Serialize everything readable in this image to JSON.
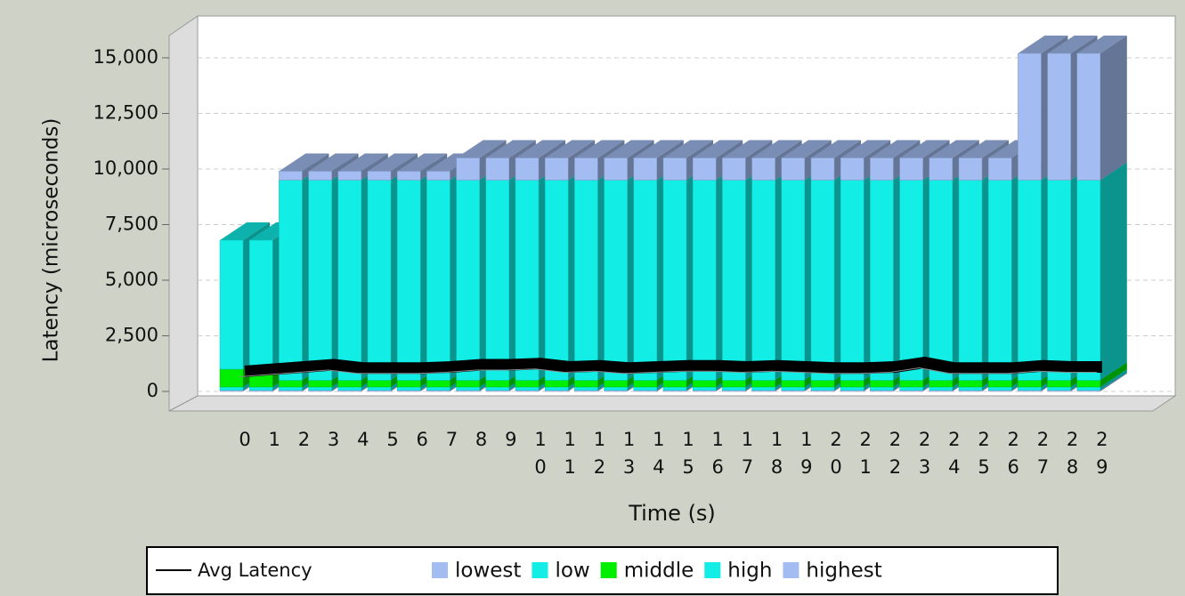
{
  "chart_data": {
    "type": "stacked-bar-line",
    "y_axis_label": "Latency (microseconds)",
    "x_axis_label": "Time (s)",
    "categories": [
      "0",
      "1",
      "2",
      "3",
      "4",
      "5",
      "6",
      "7",
      "8",
      "9",
      "10",
      "11",
      "12",
      "13",
      "14",
      "15",
      "16",
      "17",
      "18",
      "19",
      "20",
      "21",
      "22",
      "23",
      "24",
      "25",
      "26",
      "27",
      "28",
      "29"
    ],
    "ylim": [
      0,
      16000
    ],
    "yticks": [
      0,
      {
        "value": 2500,
        "label": "2,500"
      },
      {
        "value": 5000,
        "label": "5,000"
      },
      {
        "value": 7500,
        "label": "7,500"
      },
      {
        "value": 10000,
        "label": "10,000"
      },
      {
        "value": 12500,
        "label": "12,500"
      },
      {
        "value": 15000,
        "label": "15,000"
      }
    ],
    "grid": true,
    "series": [
      {
        "name": "lowest",
        "color": "#a3bdf2",
        "values": [
          50,
          50,
          50,
          50,
          50,
          50,
          50,
          50,
          50,
          50,
          50,
          50,
          50,
          50,
          50,
          50,
          50,
          50,
          50,
          50,
          50,
          50,
          50,
          50,
          50,
          50,
          50,
          50,
          50,
          50
        ]
      },
      {
        "name": "low",
        "color": "#12eee6",
        "values": [
          150,
          150,
          150,
          150,
          150,
          150,
          150,
          150,
          150,
          150,
          150,
          150,
          150,
          150,
          150,
          150,
          150,
          150,
          150,
          150,
          150,
          150,
          150,
          150,
          150,
          150,
          150,
          150,
          150,
          150
        ]
      },
      {
        "name": "middle",
        "color": "#00ee00",
        "values": [
          800,
          800,
          300,
          300,
          300,
          300,
          300,
          300,
          300,
          300,
          300,
          300,
          300,
          300,
          300,
          300,
          300,
          300,
          300,
          300,
          300,
          300,
          300,
          300,
          300,
          300,
          300,
          300,
          300,
          300
        ]
      },
      {
        "name": "high",
        "color": "#12eee6",
        "values": [
          5800,
          5800,
          9000,
          9000,
          9000,
          9000,
          9000,
          9000,
          9000,
          9000,
          9000,
          9000,
          9000,
          9000,
          9000,
          9000,
          9000,
          9000,
          9000,
          9000,
          9000,
          9000,
          9000,
          9000,
          9000,
          9000,
          9000,
          9000,
          9000,
          9000
        ]
      },
      {
        "name": "highest",
        "color": "#a3bdf2",
        "values": [
          0,
          0,
          400,
          400,
          400,
          400,
          400,
          400,
          1000,
          1000,
          1000,
          1000,
          1000,
          1000,
          1000,
          1000,
          1000,
          1000,
          1000,
          1000,
          1000,
          1000,
          1000,
          1000,
          1000,
          1000,
          1000,
          5700,
          5700,
          5700
        ]
      }
    ],
    "line": {
      "name": "Avg Latency",
      "color": "#000000",
      "values": [
        500,
        600,
        700,
        800,
        650,
        650,
        650,
        700,
        800,
        800,
        850,
        700,
        750,
        650,
        700,
        750,
        750,
        700,
        750,
        700,
        650,
        650,
        700,
        900,
        650,
        650,
        650,
        750,
        700,
        700
      ]
    }
  }
}
